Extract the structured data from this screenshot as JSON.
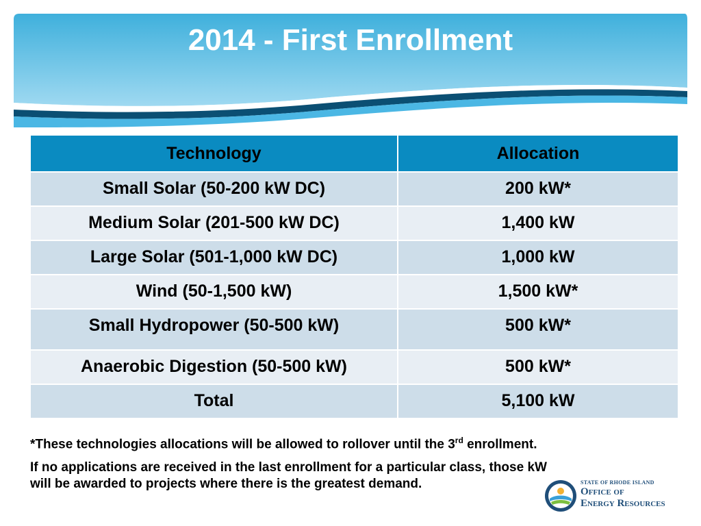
{
  "title": "2014 - First Enrollment",
  "table": {
    "headers": [
      "Technology",
      "Allocation"
    ],
    "rows": [
      {
        "technology": "Small Solar (50-200 kW DC)",
        "allocation": "200 kW*"
      },
      {
        "technology": "Medium Solar (201-500 kW DC)",
        "allocation": "1,400 kW"
      },
      {
        "technology": "Large Solar (501-1,000 kW DC)",
        "allocation": "1,000 kW"
      },
      {
        "technology": "Wind (50-1,500 kW)",
        "allocation": "1,500 kW*"
      },
      {
        "technology": "Small Hydropower (50-500 kW)",
        "allocation": "500 kW*"
      },
      {
        "technology": "Anaerobic Digestion (50-500 kW)",
        "allocation": "500 kW*"
      },
      {
        "technology": "Total",
        "allocation": "5,100 kW"
      }
    ]
  },
  "notes": {
    "footnote_before": "*These technologies allocations will be allowed to rollover until the 3",
    "footnote_sup": "rd",
    "footnote_after": " enrollment.",
    "rule": "If no applications are received in the last enrollment for a particular class, those kW will be awarded to projects where there is the greatest demand."
  },
  "logo": {
    "small_text": "STATE OF RHODE ISLAND",
    "line1": "Office of",
    "line2": "Energy Resources"
  },
  "colors": {
    "header_blue": "#0a8bc1",
    "row_odd": "#cddde9",
    "row_even": "#e8eef4",
    "banner_light": "#7fcbea",
    "banner_dark": "#0b4f73"
  }
}
